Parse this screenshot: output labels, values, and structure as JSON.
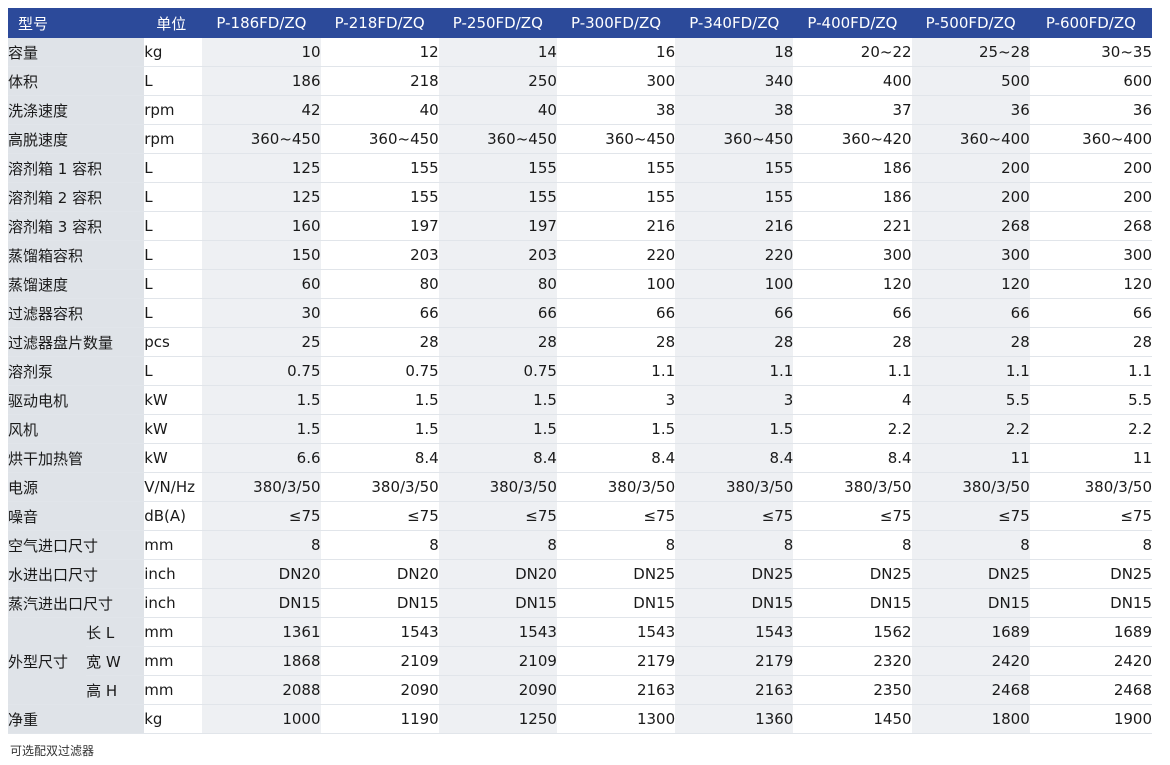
{
  "header": {
    "model_label": "型号",
    "unit_label": "单位",
    "models": [
      "P-186FD/ZQ",
      "P-218FD/ZQ",
      "P-250FD/ZQ",
      "P-300FD/ZQ",
      "P-340FD/ZQ",
      "P-400FD/ZQ",
      "P-500FD/ZQ",
      "P-600FD/ZQ"
    ]
  },
  "rows": [
    {
      "label": "容量",
      "unit": "kg",
      "values": [
        "10",
        "12",
        "14",
        "16",
        "18",
        "20~22",
        "25~28",
        "30~35"
      ]
    },
    {
      "label": "体积",
      "unit": "L",
      "values": [
        "186",
        "218",
        "250",
        "300",
        "340",
        "400",
        "500",
        "600"
      ]
    },
    {
      "label": "洗涤速度",
      "unit": "rpm",
      "values": [
        "42",
        "40",
        "40",
        "38",
        "38",
        "37",
        "36",
        "36"
      ]
    },
    {
      "label": "高脱速度",
      "unit": "rpm",
      "values": [
        "360~450",
        "360~450",
        "360~450",
        "360~450",
        "360~450",
        "360~420",
        "360~400",
        "360~400"
      ]
    },
    {
      "label": "溶剂箱 1 容积",
      "unit": "L",
      "values": [
        "125",
        "155",
        "155",
        "155",
        "155",
        "186",
        "200",
        "200"
      ]
    },
    {
      "label": "溶剂箱 2 容积",
      "unit": "L",
      "values": [
        "125",
        "155",
        "155",
        "155",
        "155",
        "186",
        "200",
        "200"
      ]
    },
    {
      "label": "溶剂箱 3 容积",
      "unit": "L",
      "values": [
        "160",
        "197",
        "197",
        "216",
        "216",
        "221",
        "268",
        "268"
      ]
    },
    {
      "label": "蒸馏箱容积",
      "unit": "L",
      "values": [
        "150",
        "203",
        "203",
        "220",
        "220",
        "300",
        "300",
        "300"
      ]
    },
    {
      "label": "蒸馏速度",
      "unit": "L",
      "values": [
        "60",
        "80",
        "80",
        "100",
        "100",
        "120",
        "120",
        "120"
      ]
    },
    {
      "label": "过滤器容积",
      "unit": "L",
      "values": [
        "30",
        "66",
        "66",
        "66",
        "66",
        "66",
        "66",
        "66"
      ]
    },
    {
      "label": "过滤器盘片数量",
      "unit": "pcs",
      "values": [
        "25",
        "28",
        "28",
        "28",
        "28",
        "28",
        "28",
        "28"
      ]
    },
    {
      "label": "溶剂泵",
      "unit": "L",
      "values": [
        "0.75",
        "0.75",
        "0.75",
        "1.1",
        "1.1",
        "1.1",
        "1.1",
        "1.1"
      ]
    },
    {
      "label": "驱动电机",
      "unit": "kW",
      "values": [
        "1.5",
        "1.5",
        "1.5",
        "3",
        "3",
        "4",
        "5.5",
        "5.5"
      ]
    },
    {
      "label": "风机",
      "unit": "kW",
      "values": [
        "1.5",
        "1.5",
        "1.5",
        "1.5",
        "1.5",
        "2.2",
        "2.2",
        "2.2"
      ]
    },
    {
      "label": "烘干加热管",
      "unit": "kW",
      "values": [
        "6.6",
        "8.4",
        "8.4",
        "8.4",
        "8.4",
        "8.4",
        "11",
        "11"
      ]
    },
    {
      "label": "电源",
      "unit": "V/N/Hz",
      "unit_small": true,
      "values": [
        "380/3/50",
        "380/3/50",
        "380/3/50",
        "380/3/50",
        "380/3/50",
        "380/3/50",
        "380/3/50",
        "380/3/50"
      ]
    },
    {
      "label": "噪音",
      "unit": "dB(A)",
      "values": [
        "≤75",
        "≤75",
        "≤75",
        "≤75",
        "≤75",
        "≤75",
        "≤75",
        "≤75"
      ]
    },
    {
      "label": "空气进口尺寸",
      "unit": "mm",
      "values": [
        "8",
        "8",
        "8",
        "8",
        "8",
        "8",
        "8",
        "8"
      ]
    },
    {
      "label": "水进出口尺寸",
      "unit": "inch",
      "values": [
        "DN20",
        "DN20",
        "DN20",
        "DN25",
        "DN25",
        "DN25",
        "DN25",
        "DN25"
      ]
    },
    {
      "label": "蒸汽进出口尺寸",
      "unit": "inch",
      "values": [
        "DN15",
        "DN15",
        "DN15",
        "DN15",
        "DN15",
        "DN15",
        "DN15",
        "DN15"
      ]
    }
  ],
  "dimensions": {
    "label": "外型尺寸",
    "rows": [
      {
        "sub": "长 L",
        "unit": "mm",
        "values": [
          "1361",
          "1543",
          "1543",
          "1543",
          "1543",
          "1562",
          "1689",
          "1689"
        ]
      },
      {
        "sub": "宽 W",
        "unit": "mm",
        "values": [
          "1868",
          "2109",
          "2109",
          "2179",
          "2179",
          "2320",
          "2420",
          "2420"
        ]
      },
      {
        "sub": "高 H",
        "unit": "mm",
        "values": [
          "2088",
          "2090",
          "2090",
          "2163",
          "2163",
          "2350",
          "2468",
          "2468"
        ]
      }
    ]
  },
  "weight_row": {
    "label": "净重",
    "unit": "kg",
    "values": [
      "1000",
      "1190",
      "1250",
      "1300",
      "1360",
      "1450",
      "1800",
      "1900"
    ]
  },
  "footnote": "可选配双过滤器"
}
